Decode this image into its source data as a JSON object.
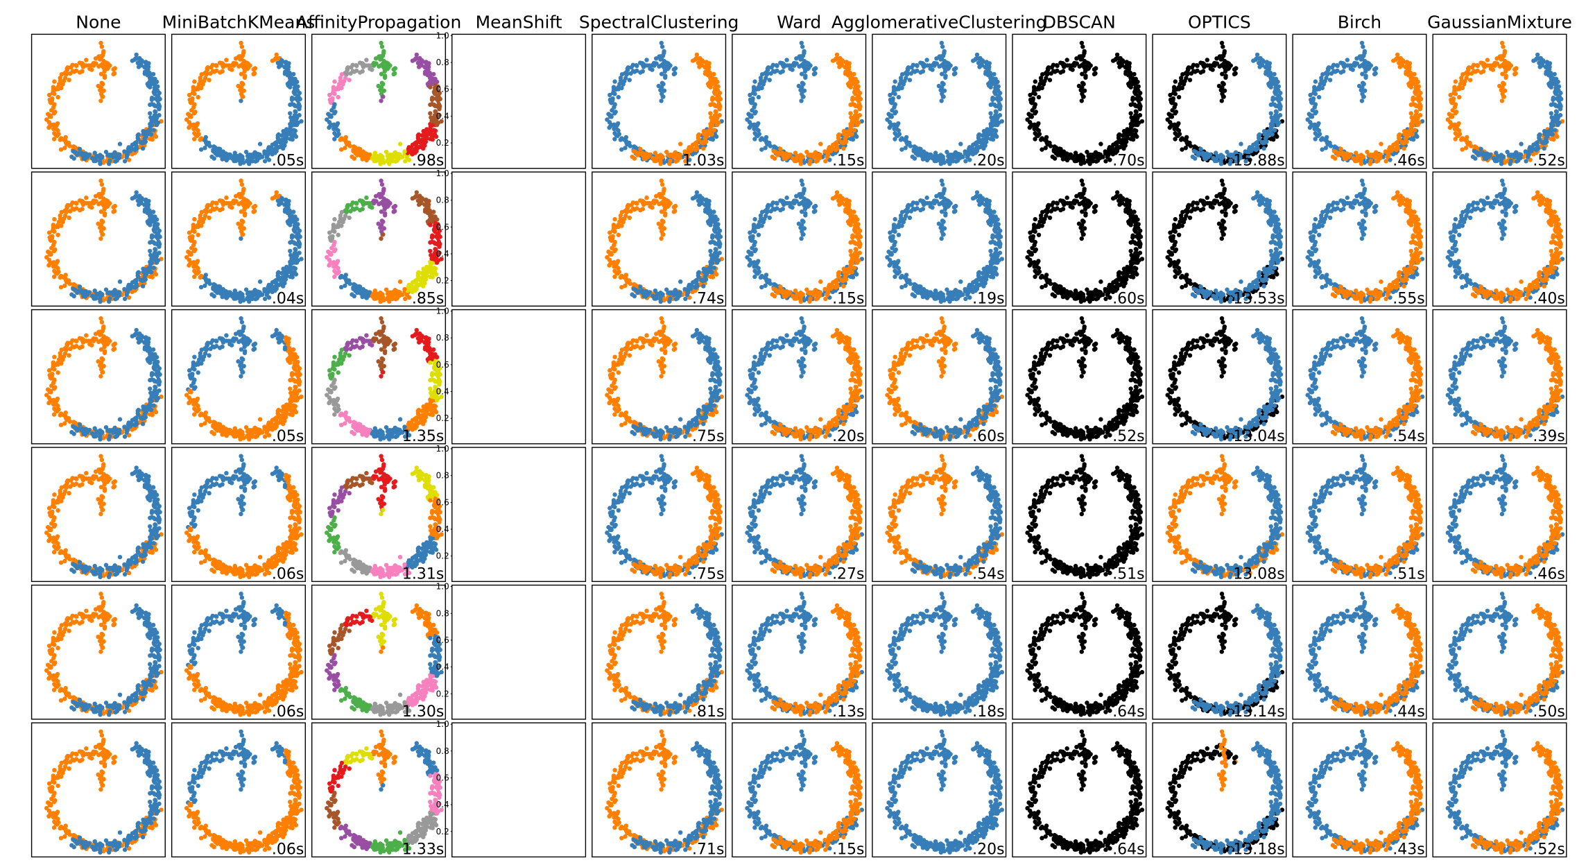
{
  "chart_data": {
    "type": "scatter",
    "layout": "grid of scatter subplots, 6 rows x 11 columns",
    "axes_shown": false,
    "column_titles": [
      "None",
      "MiniBatchKMeans",
      "AffinityPropagation",
      "MeanShift",
      "SpectralClustering",
      "Ward",
      "AgglomerativeClustering",
      "DBSCAN",
      "OPTICS",
      "Birch",
      "GaussianMixture"
    ],
    "timing_labels": [
      [
        "",
        ".05s",
        ".98s",
        "",
        "1.03s",
        ".15s",
        ".20s",
        ".70s",
        "15.88s",
        ".46s",
        ".52s"
      ],
      [
        "",
        ".04s",
        ".85s",
        "",
        ".74s",
        ".15s",
        ".19s",
        ".60s",
        "13.53s",
        ".55s",
        ".40s"
      ],
      [
        "",
        ".05s",
        "1.35s",
        "",
        ".75s",
        ".20s",
        ".60s",
        ".52s",
        "13.04s",
        ".54s",
        ".39s"
      ],
      [
        "",
        ".06s",
        "1.31s",
        "",
        ".75s",
        ".27s",
        ".54s",
        ".51s",
        "13.08s",
        ".51s",
        ".46s"
      ],
      [
        "",
        ".06s",
        "1.30s",
        "",
        ".81s",
        ".13s",
        ".18s",
        ".64s",
        "13.14s",
        ".44s",
        ".50s"
      ],
      [
        "",
        ".06s",
        "1.33s",
        "",
        ".71s",
        ".15s",
        ".20s",
        ".64s",
        "13.18s",
        ".43s",
        ".52s"
      ]
    ],
    "meanshift_panel": {
      "note": "empty plot with default axes ticks",
      "yticks": [
        "0.2",
        "0.4",
        "0.6",
        "0.8",
        "1.0"
      ]
    },
    "colors": {
      "blue": "#377eb8",
      "orange": "#ff7f00",
      "green": "#4daf4a",
      "pink": "#f781bf",
      "brown": "#a65628",
      "purple": "#984ea3",
      "gray": "#999999",
      "red": "#e41a1c",
      "yellow": "#dede00",
      "black": "#000000"
    },
    "dataset": "two interleaved spiral arms (orange upper-left arc, blue lower arc), ~200 points per panel, same points in every panel"
  }
}
